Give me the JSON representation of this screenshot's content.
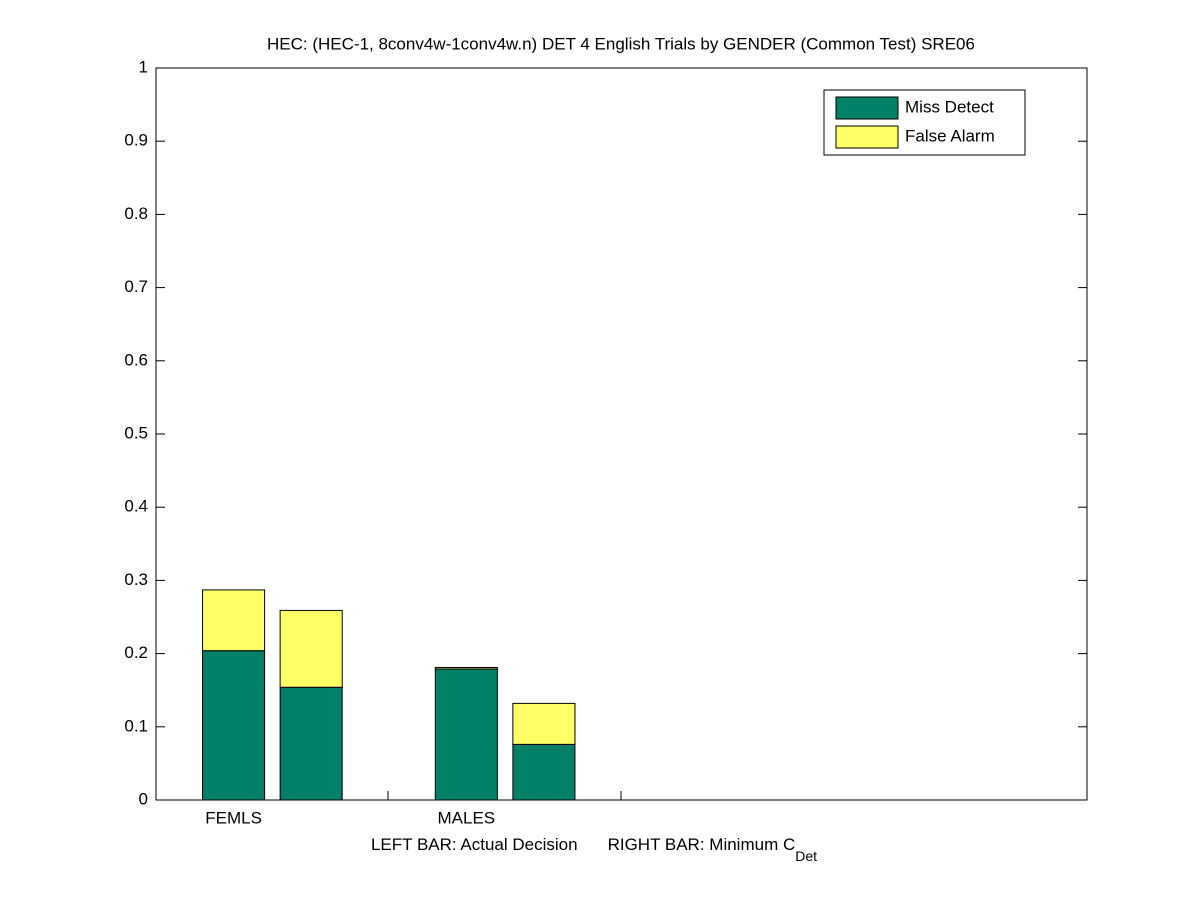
{
  "chart_data": {
    "type": "stacked_bar",
    "title": "HEC: (HEC-1, 8conv4w-1conv4w.n) DET 4 English Trials by GENDER (Common Test) SRE06",
    "xlabel": [
      "LEFT BAR: Actual Decision",
      "RIGHT BAR: Minimum C"
    ],
    "xlabel_subscript": "Det",
    "x": [
      1,
      2,
      4,
      5
    ],
    "xlim": [
      0,
      12
    ],
    "xticks": [
      {
        "value": 1,
        "label": "FEMLS"
      },
      {
        "value": 4,
        "label": "MALES"
      }
    ],
    "bar_width": 0.8,
    "series": [
      {
        "name": "Miss Detect",
        "color": "#008066",
        "values": [
          0.204,
          0.154,
          0.179,
          0.076
        ]
      },
      {
        "name": "False Alarm",
        "color": "#ffff66",
        "values": [
          0.083,
          0.105,
          0.002,
          0.056
        ]
      }
    ],
    "ylim": [
      0,
      1
    ],
    "yticks": [
      0,
      0.1,
      0.2,
      0.3,
      0.4,
      0.5,
      0.6,
      0.7,
      0.8,
      0.9,
      1
    ],
    "legend": "upper right"
  }
}
